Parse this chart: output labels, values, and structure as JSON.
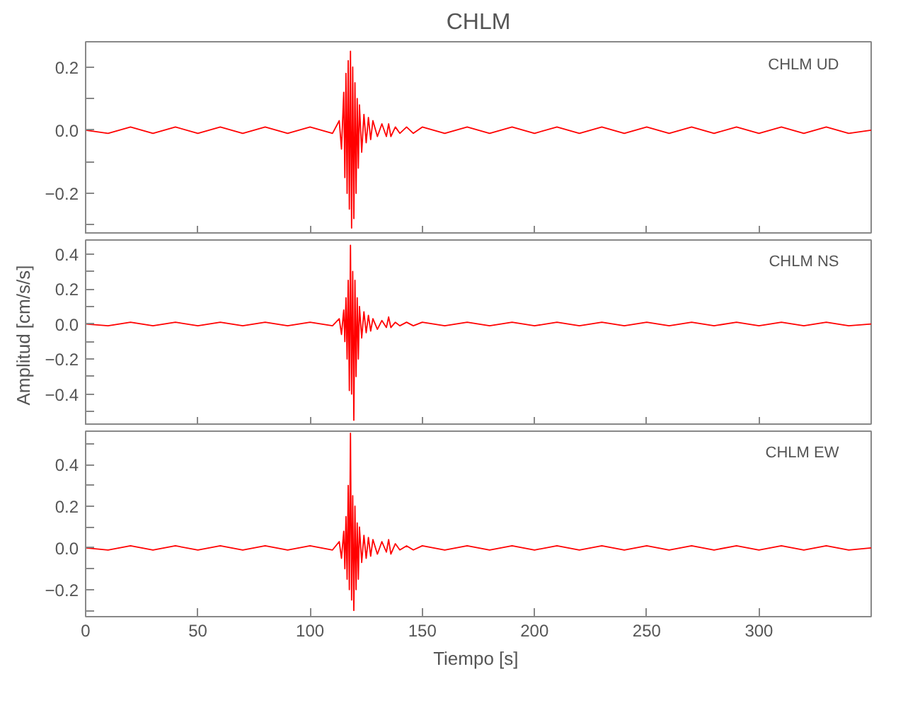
{
  "chart_data": [
    {
      "type": "line",
      "title": "CHLM",
      "annotations": [
        "CHLM   UD"
      ],
      "tick_labels": "y",
      "grid": false,
      "xlim": [
        0,
        350
      ],
      "xticks": [
        0,
        50,
        100,
        150,
        200,
        250,
        300
      ],
      "ylim": [
        -0.33,
        0.28
      ],
      "yticks": [
        {
          "value": -0.2,
          "label": "−0.2"
        },
        {
          "value": 0,
          "label": "0.0"
        },
        {
          "value": 0.2,
          "label": "0.2"
        },
        {
          "value": -0.3,
          "label": null
        },
        {
          "value": -0.1,
          "label": null
        },
        {
          "value": 0.1,
          "label": null
        }
      ],
      "x": [
        0,
        10,
        20,
        30,
        40,
        50,
        60,
        70,
        80,
        90,
        100,
        110,
        113,
        114,
        115,
        115.5,
        116,
        116.5,
        117,
        117.5,
        118,
        118.5,
        119,
        119.5,
        120,
        120.5,
        121,
        121.5,
        122,
        123,
        124,
        125,
        126,
        127,
        128,
        130,
        132,
        134,
        135,
        136,
        138,
        140,
        143,
        146,
        150,
        160,
        170,
        180,
        190,
        200,
        210,
        220,
        230,
        240,
        250,
        260,
        270,
        280,
        290,
        300,
        310,
        320,
        330,
        340,
        350
      ],
      "series": [
        {
          "color": "#ff0000",
          "values": [
            0.0,
            -0.01,
            0.01,
            -0.01,
            0.01,
            -0.01,
            0.01,
            -0.01,
            0.01,
            -0.01,
            0.01,
            -0.01,
            0.03,
            -0.06,
            0.12,
            -0.15,
            0.18,
            -0.2,
            0.22,
            -0.25,
            0.25,
            -0.31,
            0.2,
            -0.28,
            0.15,
            -0.2,
            0.1,
            -0.12,
            0.08,
            -0.07,
            0.05,
            -0.04,
            0.04,
            -0.03,
            0.03,
            -0.02,
            0.02,
            -0.02,
            0.02,
            -0.02,
            0.01,
            -0.01,
            0.01,
            -0.01,
            0.01,
            -0.01,
            0.01,
            -0.01,
            0.01,
            -0.01,
            0.01,
            -0.01,
            0.01,
            -0.01,
            0.01,
            -0.01,
            0.01,
            -0.01,
            0.01,
            -0.01,
            0.01,
            -0.01,
            0.01,
            -0.01,
            0.0
          ]
        }
      ]
    },
    {
      "type": "line",
      "ylabel": "Amplitud  [cm/s/s]",
      "annotations": [
        "CHLM   NS"
      ],
      "tick_labels": "y",
      "grid": false,
      "xlim": [
        0,
        350
      ],
      "xticks": [
        0,
        50,
        100,
        150,
        200,
        250,
        300
      ],
      "ylim": [
        -0.58,
        0.48
      ],
      "yticks": [
        {
          "value": -0.4,
          "label": "−0.4"
        },
        {
          "value": -0.2,
          "label": "−0.2"
        },
        {
          "value": 0,
          "label": "0.0"
        },
        {
          "value": 0.2,
          "label": "0.2"
        },
        {
          "value": 0.4,
          "label": "0.4"
        },
        {
          "value": -0.5,
          "label": null
        },
        {
          "value": -0.3,
          "label": null
        },
        {
          "value": -0.1,
          "label": null
        },
        {
          "value": 0.1,
          "label": null
        },
        {
          "value": 0.3,
          "label": null
        }
      ],
      "x": [
        0,
        10,
        20,
        30,
        40,
        50,
        60,
        70,
        80,
        90,
        100,
        110,
        113,
        114,
        115,
        115.5,
        116,
        116.5,
        117,
        117.5,
        118,
        118.5,
        119,
        119.5,
        120,
        120.5,
        121,
        121.5,
        122,
        123,
        124,
        125,
        126,
        127,
        128,
        130,
        132,
        134,
        135,
        136,
        138,
        140,
        143,
        146,
        150,
        160,
        170,
        180,
        190,
        200,
        210,
        220,
        230,
        240,
        250,
        260,
        270,
        280,
        290,
        300,
        310,
        320,
        330,
        340,
        350
      ],
      "series": [
        {
          "color": "#ff0000",
          "values": [
            0.0,
            -0.01,
            0.01,
            -0.01,
            0.01,
            -0.01,
            0.01,
            -0.01,
            0.01,
            -0.01,
            0.01,
            -0.01,
            0.03,
            -0.06,
            0.08,
            -0.1,
            0.15,
            -0.2,
            0.25,
            -0.38,
            0.45,
            -0.4,
            0.3,
            -0.55,
            0.25,
            -0.3,
            0.15,
            -0.2,
            0.1,
            -0.08,
            0.07,
            -0.05,
            0.05,
            -0.04,
            0.03,
            -0.03,
            0.02,
            -0.02,
            0.04,
            -0.02,
            0.01,
            -0.01,
            0.01,
            -0.01,
            0.01,
            -0.01,
            0.01,
            -0.01,
            0.01,
            -0.01,
            0.01,
            -0.01,
            0.01,
            -0.01,
            0.01,
            -0.01,
            0.01,
            -0.01,
            0.01,
            -0.01,
            0.01,
            -0.01,
            0.01,
            -0.01,
            0.0
          ]
        }
      ]
    },
    {
      "type": "line",
      "xlabel": "Tiempo  [s]",
      "annotations": [
        "CHLM   EW"
      ],
      "grid": false,
      "xlim": [
        0,
        350
      ],
      "xticks": [
        0,
        50,
        100,
        150,
        200,
        250,
        300
      ],
      "ylim": [
        -0.33,
        0.56
      ],
      "yticks": [
        {
          "value": -0.2,
          "label": "−0.2"
        },
        {
          "value": 0,
          "label": "0.0"
        },
        {
          "value": 0.2,
          "label": "0.2"
        },
        {
          "value": 0.4,
          "label": "0.4"
        },
        {
          "value": -0.3,
          "label": null
        },
        {
          "value": -0.1,
          "label": null
        },
        {
          "value": 0.1,
          "label": null
        },
        {
          "value": 0.3,
          "label": null
        },
        {
          "value": 0.5,
          "label": null
        }
      ],
      "x": [
        0,
        10,
        20,
        30,
        40,
        50,
        60,
        70,
        80,
        90,
        100,
        110,
        113,
        114,
        115,
        115.5,
        116,
        116.5,
        117,
        117.5,
        118,
        118.5,
        119,
        119.5,
        120,
        120.5,
        121,
        121.5,
        122,
        123,
        124,
        125,
        126,
        127,
        128,
        130,
        132,
        134,
        135,
        136,
        138,
        140,
        143,
        146,
        150,
        160,
        170,
        180,
        190,
        200,
        210,
        220,
        230,
        240,
        250,
        260,
        270,
        280,
        290,
        300,
        310,
        320,
        330,
        340,
        350
      ],
      "series": [
        {
          "color": "#ff0000",
          "values": [
            0.0,
            -0.01,
            0.01,
            -0.01,
            0.01,
            -0.01,
            0.01,
            -0.01,
            0.01,
            -0.01,
            0.01,
            -0.01,
            0.03,
            -0.05,
            0.08,
            -0.1,
            0.15,
            -0.15,
            0.3,
            -0.2,
            0.55,
            -0.25,
            0.25,
            -0.3,
            0.2,
            -0.2,
            0.12,
            -0.15,
            0.1,
            -0.07,
            0.06,
            -0.05,
            0.05,
            -0.04,
            0.04,
            -0.03,
            0.03,
            -0.02,
            0.04,
            -0.03,
            0.02,
            -0.01,
            0.01,
            -0.01,
            0.01,
            -0.01,
            0.01,
            -0.01,
            0.01,
            -0.01,
            0.01,
            -0.01,
            0.01,
            -0.01,
            0.01,
            -0.01,
            0.01,
            -0.01,
            0.01,
            -0.01,
            0.01,
            -0.01,
            0.01,
            -0.01,
            0.0
          ]
        }
      ]
    }
  ]
}
